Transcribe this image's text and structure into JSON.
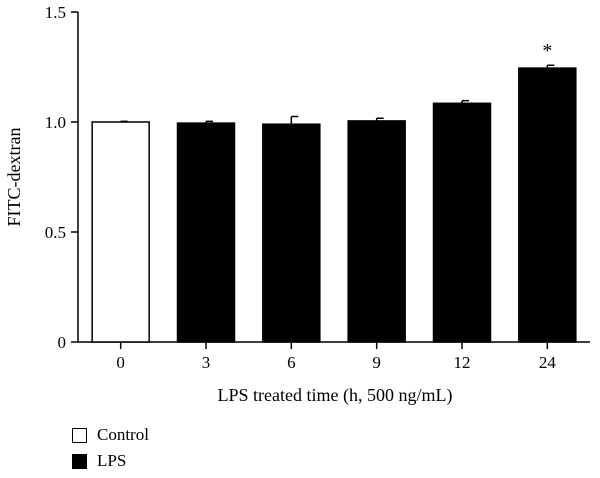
{
  "chart_data": {
    "type": "bar",
    "categories": [
      "0",
      "3",
      "6",
      "9",
      "12",
      "24"
    ],
    "values": [
      1.0,
      0.995,
      0.99,
      1.005,
      1.085,
      1.245
    ],
    "errors": [
      0.003,
      0.008,
      0.035,
      0.012,
      0.012,
      0.013
    ],
    "groups": [
      "Control",
      "LPS",
      "LPS",
      "LPS",
      "LPS",
      "LPS"
    ],
    "annotations": [
      "",
      "",
      "",
      "",
      "",
      "*"
    ],
    "xlabel": "LPS treated time (h, 500 ng/mL)",
    "ylabel": "FITC-dextran",
    "ylim": [
      0,
      1.5
    ],
    "yticks": [
      "0",
      "0.5",
      "1.0",
      "1.5"
    ],
    "legend": [
      {
        "label": "Control",
        "color": "#ffffff"
      },
      {
        "label": "LPS",
        "color": "#000000"
      }
    ],
    "legend_position": "bottom-left",
    "grid": false
  }
}
